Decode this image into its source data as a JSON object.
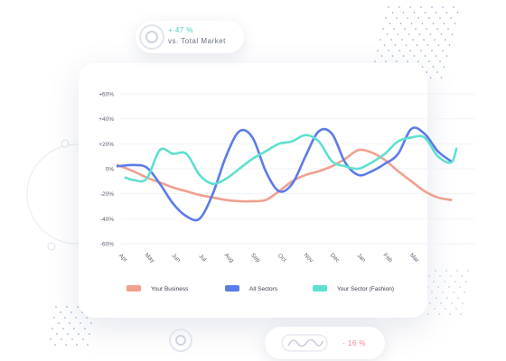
{
  "badges": {
    "market_value": "+ 47 %",
    "market_label": "vs. Total Market",
    "change_value": "- 16 %"
  },
  "colors": {
    "your_business": "#f0a08f",
    "all_sectors": "#5b7be8",
    "your_sector": "#5ee0cf",
    "accent_teal": "#4cd3c2",
    "accent_pink": "#ef8a9a"
  },
  "icons": {
    "badge_top": "target-rings-icon",
    "badge_bottom": "wave-icon",
    "floating": "target-ring-icon"
  },
  "chart_data": {
    "type": "line",
    "categories": [
      "Apr",
      "May",
      "Jun",
      "Jul",
      "Aug",
      "Sep",
      "Oct",
      "Nov",
      "Dec",
      "Jan",
      "Feb",
      "Mar"
    ],
    "y_ticks": [
      "+60%",
      "+40%",
      "+20%",
      "0%",
      "-20%",
      "-40%",
      "-60%"
    ],
    "ylim": [
      -60,
      60
    ],
    "grid": true,
    "legend_position": "bottom",
    "series": [
      {
        "name": "Your Business",
        "color": "#f0a08f",
        "x": [
          -0.1,
          0.5,
          1,
          1.5,
          2,
          2.5,
          3,
          3.5,
          4,
          4.5,
          5,
          5.5,
          6,
          6.5,
          7,
          7.5,
          8,
          8.5,
          9,
          9.5,
          10,
          10.5,
          11,
          11.5,
          12,
          12.5
        ],
        "values": [
          3,
          -2,
          -7,
          -11,
          -15,
          -18,
          -21,
          -23,
          -25,
          -26,
          -26,
          -25,
          -18,
          -10,
          -5,
          -2,
          2,
          8,
          15,
          13,
          7,
          -2,
          -10,
          -18,
          -23,
          -25
        ]
      },
      {
        "name": "All Sectors",
        "color": "#5b7be8",
        "x": [
          -0.1,
          0.5,
          1,
          1.5,
          2,
          2.5,
          3,
          3.5,
          4,
          4.5,
          5,
          5.5,
          6,
          6.5,
          7,
          7.5,
          8,
          8.5,
          9,
          9.5,
          10,
          10.5,
          11,
          11.5,
          12,
          12.5
        ],
        "values": [
          2,
          3,
          1,
          -12,
          -28,
          -38,
          -40,
          -20,
          10,
          30,
          25,
          -2,
          -18,
          -12,
          10,
          30,
          28,
          5,
          -5,
          -2,
          4,
          12,
          32,
          28,
          14,
          6
        ]
      },
      {
        "name": "Your Sector (Fashion)",
        "color": "#5ee0cf",
        "x": [
          0.2,
          0.5,
          1,
          1.5,
          2,
          2.5,
          3,
          3.5,
          4,
          4.5,
          5,
          5.5,
          6,
          6.5,
          7,
          7.5,
          8,
          8.5,
          9,
          9.5,
          10,
          10.5,
          11,
          11.5,
          12,
          12.5,
          12.7
        ],
        "values": [
          -7,
          -9,
          -8,
          15,
          12,
          12,
          -5,
          -12,
          -8,
          0,
          8,
          14,
          20,
          22,
          27,
          22,
          6,
          2,
          0,
          5,
          12,
          22,
          25,
          25,
          10,
          5,
          16
        ]
      }
    ]
  }
}
